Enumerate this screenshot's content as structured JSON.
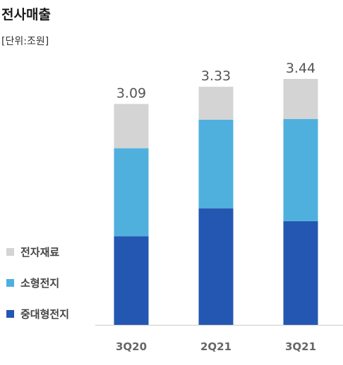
{
  "header": {
    "title": "전사매출",
    "unit": "[단위:조원]"
  },
  "colors": {
    "electronic_materials": "#D4D4D4",
    "small_battery": "#4FB0DE",
    "large_battery": "#2457B1",
    "axis": "#CCCCCC"
  },
  "chart_data": {
    "type": "bar",
    "stacked": true,
    "title": "전사매출",
    "subtitle": "[단위:조원]",
    "categories": [
      "3Q20",
      "2Q21",
      "3Q21"
    ],
    "totals": [
      3.09,
      3.33,
      3.44
    ],
    "total_labels": [
      "3.09",
      "3.33",
      "3.44"
    ],
    "series": [
      {
        "name": "중대형전지",
        "values": [
          1.24,
          1.63,
          1.45
        ]
      },
      {
        "name": "소형전지",
        "values": [
          1.23,
          1.24,
          1.43
        ]
      },
      {
        "name": "전자재료",
        "values": [
          0.62,
          0.46,
          0.56
        ]
      }
    ],
    "legend": {
      "position": "left",
      "entries": [
        "전자재료",
        "소형전지",
        "중대형전지"
      ]
    },
    "ylim": [
      0,
      3.44
    ],
    "grid": false
  }
}
